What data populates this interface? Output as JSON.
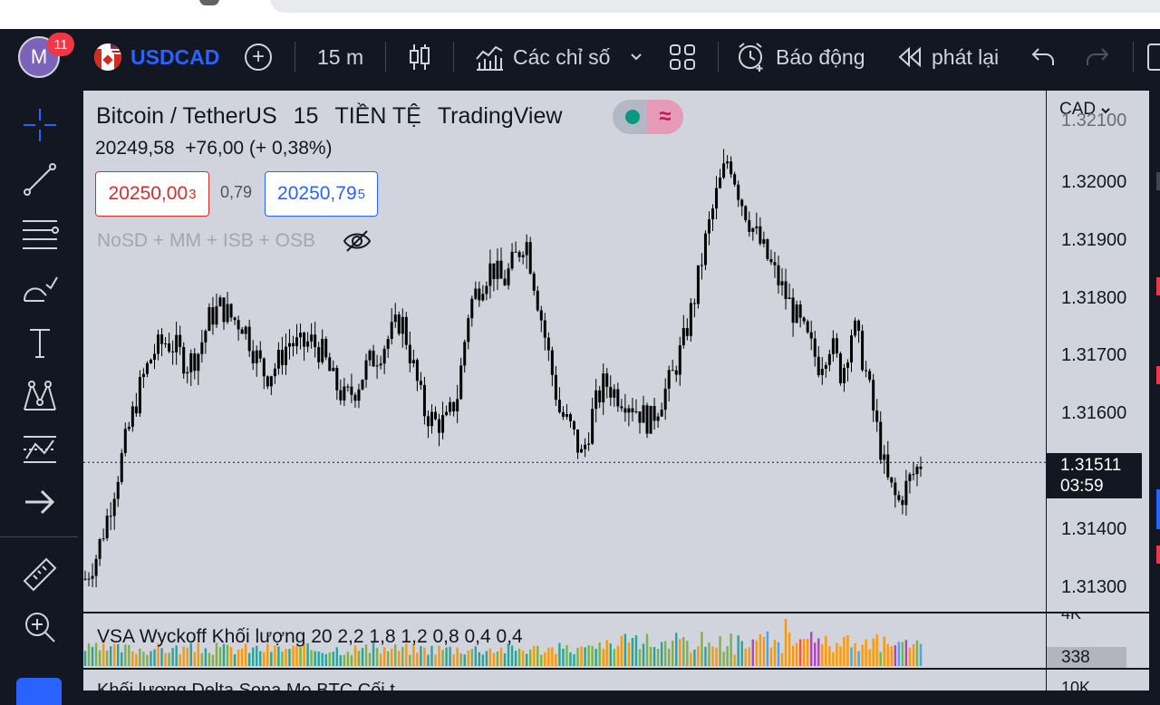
{
  "toolbar": {
    "avatar_letter": "M",
    "notification_count": "11",
    "symbol": "USDCAD",
    "interval": "15 m",
    "indicators_label": "Các chỉ số",
    "alert_label": "Báo động",
    "replay_label": "phát lại"
  },
  "sidebar": {
    "tools": [
      "crosshair",
      "trend-line",
      "fib-retracement",
      "brush",
      "text",
      "pattern",
      "prediction",
      "arrow",
      "ruler",
      "zoom-in"
    ]
  },
  "legend": {
    "title": "Bitcoin / TetherUS",
    "interval": "15",
    "market": "TIỀN TỆ",
    "source": "TradingView",
    "change": "20249,58  +76,00 (+ 0,38%)",
    "bid_main": "20250,00",
    "bid_sup": "3",
    "spread": "0,79",
    "ask_main": "20250,79",
    "ask_sup": "5",
    "indicator_text": "NoSD + MM + ISB + OSB"
  },
  "price_axis": {
    "currency": "CAD",
    "ticks": [
      "1.32000",
      "1.31900",
      "1.31800",
      "1.31700",
      "1.31600",
      "1.31400",
      "1.31300"
    ],
    "current_price": "1.31511",
    "countdown": "03:59"
  },
  "volume": {
    "label": "VSA Wyckoff Khối lượng 20 2,2 1,8 1,2 0,8 0,4 0,4",
    "axis_top": "4K",
    "current": "338"
  },
  "bottom_panel": {
    "label": "Khối lượng Delta Sona Mo BTC Cối t",
    "axis_top": "10K"
  },
  "colors": {
    "background": "#131722",
    "chart_bg": "#d1d4dc",
    "accent": "#2962ff",
    "down": "#d32f2f",
    "badge": "#f23645"
  },
  "chart_data": {
    "type": "candlestick",
    "ylim": [
      1.3125,
      1.3215
    ],
    "y_ticks": [
      1.32,
      1.319,
      1.318,
      1.317,
      1.316,
      1.314,
      1.313
    ],
    "current_price": 1.31511,
    "close_path": [
      1.3131,
      1.3135,
      1.3142,
      1.315,
      1.3158,
      1.3165,
      1.317,
      1.3172,
      1.3171,
      1.3168,
      1.317,
      1.3176,
      1.3178,
      1.3176,
      1.3175,
      1.317,
      1.3166,
      1.3168,
      1.3172,
      1.3171,
      1.3172,
      1.317,
      1.3165,
      1.3162,
      1.3164,
      1.3168,
      1.317,
      1.3173,
      1.3176,
      1.3168,
      1.316,
      1.3158,
      1.3158,
      1.3163,
      1.3178,
      1.3182,
      1.3185,
      1.3182,
      1.3186,
      1.319,
      1.318,
      1.317,
      1.316,
      1.3157,
      1.3152,
      1.316,
      1.3165,
      1.3163,
      1.3162,
      1.316,
      1.3158,
      1.3162,
      1.3166,
      1.3172,
      1.318,
      1.319,
      1.3198,
      1.3204,
      1.3197,
      1.3192,
      1.3188,
      1.3184,
      1.318,
      1.3176,
      1.3172,
      1.3168,
      1.3172,
      1.3166,
      1.3175,
      1.3168,
      1.3158,
      1.3148,
      1.3144,
      1.3148,
      1.3151
    ]
  }
}
